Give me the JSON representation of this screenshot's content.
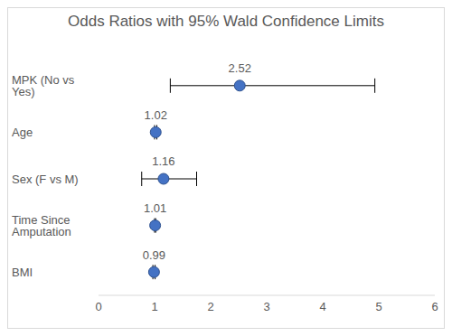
{
  "chart_data": {
    "type": "scatter",
    "title": "Odds Ratios with 95% Wald Confidence Limits",
    "orientation": "horizontal",
    "categories": [
      "MPK (No vs Yes)",
      "Age",
      "Sex (F vs M)",
      "Time Since Amputation",
      "BMI"
    ],
    "values": [
      2.52,
      1.02,
      1.16,
      1.01,
      0.99
    ],
    "ci_lower": [
      1.28,
      1.0,
      0.77,
      1.0,
      0.97
    ],
    "ci_upper": [
      4.93,
      1.04,
      1.75,
      1.02,
      1.01
    ],
    "color": "#4472c4",
    "marker": "circle",
    "xlim": [
      0,
      6
    ],
    "xticks": [
      0,
      1,
      2,
      3,
      4,
      5,
      6
    ],
    "grid": false,
    "data_labels": true
  }
}
